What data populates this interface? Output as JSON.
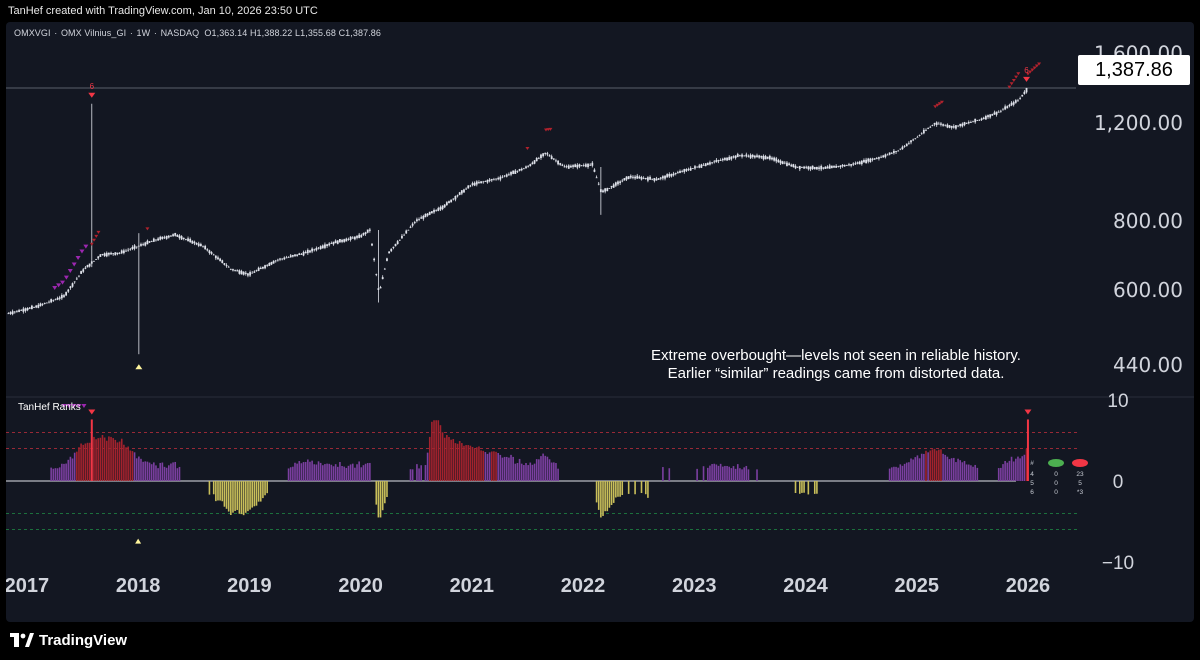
{
  "header": {
    "text": "TanHef created with TradingView.com, Jan 10, 2026 23:50 UTC"
  },
  "legend": {
    "symbol": "OMXVGI",
    "name": "OMX Vilnius_GI",
    "interval": "1W",
    "exchange": "NASDAQ",
    "o_label": "O",
    "open": "1,363.14",
    "h_label": "H",
    "high": "1,388.22",
    "l_label": "L",
    "low": "1,355.68",
    "c_label": "C",
    "close": "1,387.86",
    "separator": "·"
  },
  "annotation": {
    "line1": "Extreme overbought—levels not seen in reliable history.",
    "line2": "Earlier “similar” readings came from distorted data."
  },
  "price_label": "1,387.86",
  "indicator": {
    "title": "TanHef Ranks",
    "table": {
      "rows": [
        [
          "#",
          "",
          ""
        ],
        [
          "4",
          "0",
          "23"
        ],
        [
          "5",
          "0",
          "5"
        ],
        [
          "6",
          "0",
          "*3"
        ]
      ],
      "dot_colors": [
        "#4caf50",
        "#f23645"
      ]
    }
  },
  "branding": {
    "logo_text": "TradingView",
    "logo_icon": "tradingview-logo-icon"
  },
  "colors": {
    "background": "#131722",
    "candle": "#e0e3eb",
    "sell_signal": "#f23645",
    "sell_signal_dark": "#b2222d",
    "buy_signal": "#fff59d",
    "purple_signal": "#9c27b0",
    "bar_purple": "#7b3fa0",
    "bar_red": "#a3222d",
    "bar_yellow": "#c9bf5a",
    "upper_band": "#f23645",
    "lower_band": "#22ab50"
  },
  "chart_data": [
    {
      "type": "candlestick",
      "title": "OMXVGI · OMX Vilnius_GI · 1W · NASDAQ",
      "scale": "log",
      "y_ticks": [
        "1,600.00",
        "1,200.00",
        "800.00",
        "600.00",
        "440.00"
      ],
      "y_tick_values": [
        1600,
        1200,
        800,
        600,
        440
      ],
      "x_ticks": [
        "2017",
        "2018",
        "2019",
        "2020",
        "2021",
        "2022",
        "2023",
        "2024",
        "2025",
        "2026"
      ],
      "ylim": [
        390,
        1780
      ],
      "last_price": 1387.86,
      "ohlc_last": {
        "open": 1363.14,
        "high": 1388.22,
        "low": 1355.68,
        "close": 1387.86
      },
      "close_path": [
        [
          "2016-11",
          545
        ],
        [
          "2017-02",
          560
        ],
        [
          "2017-05",
          585
        ],
        [
          "2017-07",
          650
        ],
        [
          "2017-09",
          695
        ],
        [
          "2017-11",
          700
        ],
        [
          "2018-01",
          720
        ],
        [
          "2018-03",
          740
        ],
        [
          "2018-05",
          755
        ],
        [
          "2018-08",
          720
        ],
        [
          "2018-11",
          655
        ],
        [
          "2019-01",
          640
        ],
        [
          "2019-04",
          680
        ],
        [
          "2019-07",
          700
        ],
        [
          "2019-10",
          730
        ],
        [
          "2020-01",
          750
        ],
        [
          "2020-02",
          770
        ],
        [
          "2020-03",
          590
        ],
        [
          "2020-04",
          700
        ],
        [
          "2020-07",
          800
        ],
        [
          "2020-10",
          850
        ],
        [
          "2021-01",
          930
        ],
        [
          "2021-04",
          955
        ],
        [
          "2021-07",
          1000
        ],
        [
          "2021-09",
          1060
        ],
        [
          "2021-11",
          1000
        ],
        [
          "2022-02",
          1010
        ],
        [
          "2022-03",
          900
        ],
        [
          "2022-06",
          960
        ],
        [
          "2022-09",
          950
        ],
        [
          "2022-12",
          985
        ],
        [
          "2023-03",
          1020
        ],
        [
          "2023-06",
          1050
        ],
        [
          "2023-09",
          1040
        ],
        [
          "2023-12",
          1000
        ],
        [
          "2024-03",
          995
        ],
        [
          "2024-06",
          1010
        ],
        [
          "2024-09",
          1040
        ],
        [
          "2024-11",
          1070
        ],
        [
          "2025-01",
          1130
        ],
        [
          "2025-03",
          1200
        ],
        [
          "2025-05",
          1180
        ],
        [
          "2025-08",
          1220
        ],
        [
          "2025-10",
          1260
        ],
        [
          "2025-12",
          1320
        ],
        [
          "2026-01",
          1387.86
        ]
      ],
      "spikes": [
        {
          "date": "2017-08",
          "high": 1300,
          "low": 660
        },
        {
          "date": "2018-01",
          "high": 760,
          "low": 460
        },
        {
          "date": "2020-03",
          "high": 770,
          "low": 570
        },
        {
          "date": "2022-03",
          "high": 1000,
          "low": 820
        }
      ],
      "signal_markers": [
        {
          "date": "2017-08",
          "label": "6",
          "kind": "sell"
        },
        {
          "date": "2018-01",
          "label": "",
          "kind": "buy"
        },
        {
          "date": "2026-01",
          "label": "6",
          "kind": "sell"
        }
      ]
    },
    {
      "type": "bar",
      "title": "TanHef Ranks",
      "y_ticks": [
        "10",
        "0",
        "−10"
      ],
      "y_tick_values": [
        10,
        0,
        -10
      ],
      "ylim": [
        -10,
        10
      ],
      "bands": [
        6,
        4,
        -4,
        -6
      ],
      "series_note": "histogram of rank values by week"
    }
  ]
}
